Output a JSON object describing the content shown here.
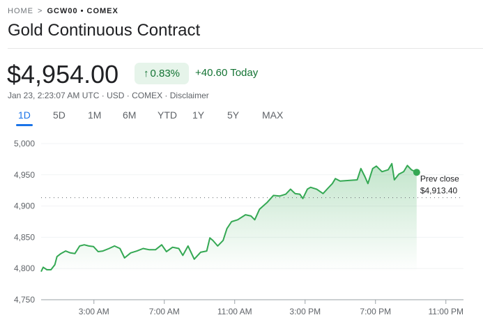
{
  "breadcrumb": {
    "home": "HOME",
    "separator": ">",
    "current": "GCW00 • COMEX"
  },
  "title": "Gold Continuous Contract",
  "quote": {
    "price": "$4,954.00",
    "change_pct": "0.83%",
    "change_abs": "+40.60 Today",
    "meta": "Jan 23, 2:23:07 AM UTC · USD · COMEX · Disclaimer"
  },
  "tabs": [
    "1D",
    "5D",
    "1M",
    "6M",
    "YTD",
    "1Y",
    "5Y",
    "MAX"
  ],
  "active_tab": "1D",
  "colors": {
    "line": "#34a853",
    "positive": "#137333",
    "accent": "#1a73e8"
  },
  "chart_data": {
    "type": "area",
    "ylim": [
      4750,
      5000
    ],
    "yticks": [
      5000,
      4950,
      4900,
      4850,
      4800,
      4750
    ],
    "ytick_labels": [
      "5,000",
      "4,950",
      "4,900",
      "4,850",
      "4,800",
      "4,750"
    ],
    "xlim": [
      0,
      24
    ],
    "xticks": [
      3,
      7,
      11,
      15,
      19,
      23
    ],
    "xtick_labels": [
      "3:00 AM",
      "7:00 AM",
      "11:00 AM",
      "3:00 PM",
      "7:00 PM",
      "11:00 PM"
    ],
    "prev_close": 4913.4,
    "prev_close_label": "Prev close",
    "prev_close_value": "$4,913.40",
    "series": [
      {
        "name": "GCW00",
        "x": [
          0,
          0.12,
          0.33,
          0.56,
          0.78,
          0.9,
          1.13,
          1.39,
          1.66,
          1.92,
          2.19,
          2.45,
          2.71,
          2.98,
          3.24,
          3.51,
          3.86,
          4.17,
          4.48,
          4.74,
          5.09,
          5.44,
          5.8,
          6.15,
          6.5,
          6.85,
          7.12,
          7.47,
          7.82,
          8.05,
          8.35,
          8.7,
          9.06,
          9.41,
          9.59,
          9.76,
          10.03,
          10.34,
          10.56,
          10.82,
          11.17,
          11.61,
          11.93,
          12.14,
          12.41,
          12.85,
          13.2,
          13.55,
          13.9,
          14.17,
          14.43,
          14.7,
          14.87,
          15.13,
          15.31,
          15.66,
          16.02,
          16.28,
          16.55,
          16.72,
          16.99,
          17.96,
          18.17,
          18.4,
          18.57,
          18.84,
          19.05,
          19.37,
          19.72,
          19.93,
          20.07,
          20.33,
          20.6,
          20.81,
          21.04,
          21.34
        ],
        "y": [
          4795,
          4802,
          4798,
          4798,
          4806,
          4819,
          4824,
          4828,
          4825,
          4824,
          4836,
          4838,
          4836,
          4835,
          4827,
          4828,
          4832,
          4836,
          4832,
          4817,
          4825,
          4828,
          4832,
          4830,
          4830,
          4838,
          4827,
          4834,
          4832,
          4821,
          4836,
          4815,
          4826,
          4828,
          4849,
          4845,
          4836,
          4845,
          4864,
          4875,
          4878,
          4886,
          4884,
          4878,
          4895,
          4906,
          4917,
          4916,
          4919,
          4927,
          4920,
          4919,
          4912,
          4927,
          4930,
          4927,
          4920,
          4928,
          4936,
          4944,
          4940,
          4942,
          4960,
          4947,
          4936,
          4960,
          4964,
          4955,
          4958,
          4968,
          4942,
          4951,
          4955,
          4965,
          4958,
          4954
        ]
      }
    ]
  }
}
